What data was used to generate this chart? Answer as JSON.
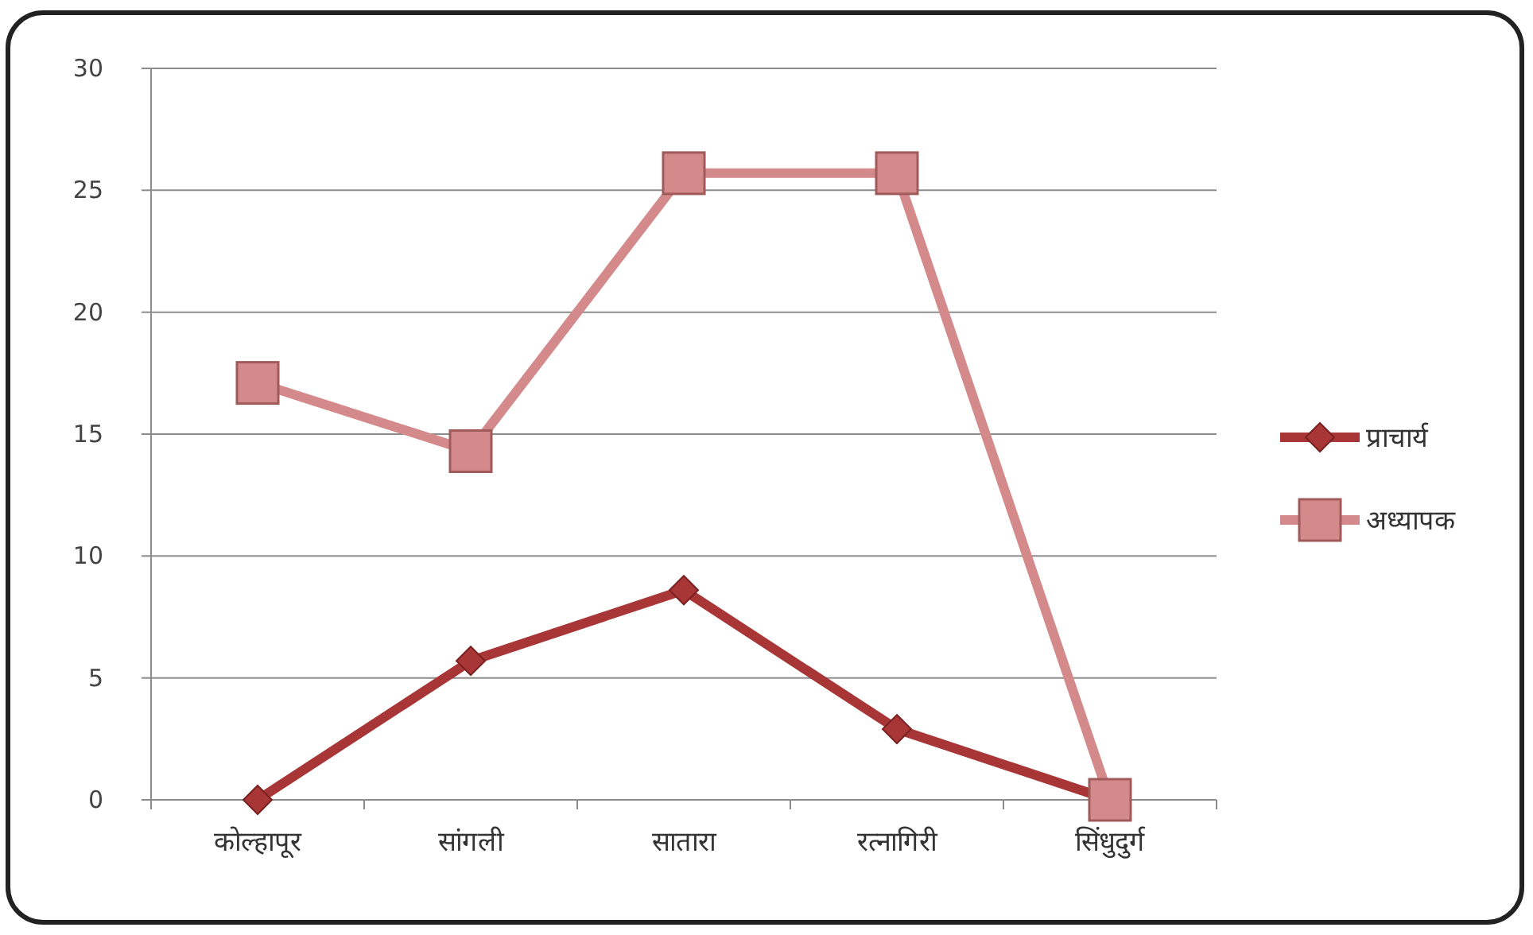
{
  "chart_data": {
    "type": "line",
    "categories": [
      "कोल्हापूर",
      "सांगली",
      "सातारा",
      "रत्नागिरी",
      "सिंधुदुर्ग"
    ],
    "series": [
      {
        "name": "प्राचार्य",
        "color": "#a83636",
        "marker": "diamond",
        "values": [
          0,
          5.7,
          8.6,
          2.9,
          0
        ]
      },
      {
        "name": "अध्यापक",
        "color": "#d48a8a",
        "marker": "square",
        "values": [
          17.1,
          14.3,
          25.7,
          25.7,
          0
        ]
      }
    ],
    "ylim": [
      0,
      30
    ],
    "yticks": [
      0,
      5,
      10,
      15,
      20,
      25,
      30
    ],
    "grid": "y",
    "legend": "right"
  }
}
